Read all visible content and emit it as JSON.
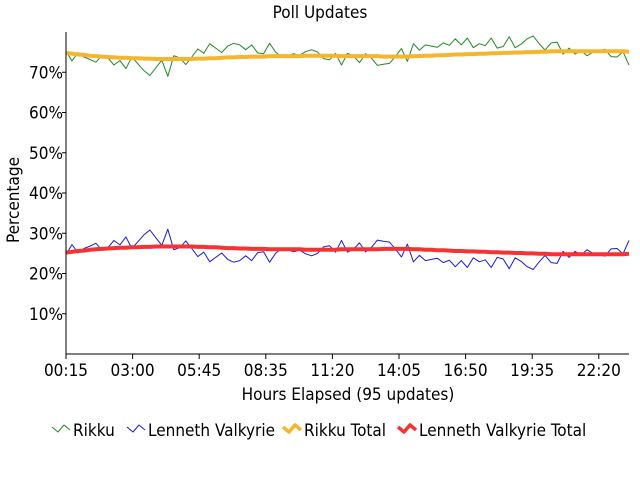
{
  "chart_data": {
    "type": "line",
    "title": "Poll Updates",
    "xlabel": "Hours Elapsed (95 updates)",
    "ylabel": "Percentage",
    "ylim": [
      0,
      80
    ],
    "grid": false,
    "legend_position": "bottom",
    "x_ticks": [
      "00:15",
      "03:00",
      "05:45",
      "08:35",
      "11:20",
      "14:05",
      "16:50",
      "19:35",
      "22:20"
    ],
    "y_ticks": [
      "10%",
      "20%",
      "30%",
      "40%",
      "50%",
      "60%",
      "70%"
    ],
    "y_tick_values": [
      10,
      20,
      30,
      40,
      50,
      60,
      70
    ],
    "n_updates": 95,
    "series": [
      {
        "name": "Rikku",
        "color": "#228b22",
        "values": [
          75.2,
          72.8,
          74.9,
          73.8,
          73.2,
          72.5,
          74.1,
          73.6,
          71.8,
          72.9,
          70.9,
          73.8,
          72.1,
          70.4,
          69.2,
          71.1,
          73.0,
          69.0,
          74.1,
          73.6,
          71.9,
          73.8,
          75.8,
          74.7,
          77.1,
          76.0,
          74.9,
          76.5,
          77.2,
          76.8,
          75.6,
          76.8,
          74.8,
          74.6,
          77.2,
          75.0,
          73.8,
          74.1,
          74.6,
          74.2,
          75.1,
          75.6,
          75.0,
          73.4,
          73.1,
          74.7,
          71.8,
          74.7,
          74.0,
          72.4,
          74.6,
          73.5,
          71.7,
          72.0,
          72.2,
          73.9,
          75.9,
          72.7,
          77.1,
          75.5,
          76.8,
          76.5,
          76.2,
          77.3,
          76.7,
          78.3,
          76.8,
          78.5,
          76.1,
          77.1,
          76.6,
          78.5,
          76.0,
          76.4,
          78.8,
          76.1,
          77.0,
          78.3,
          79.0,
          77.1,
          75.5,
          77.3,
          77.5,
          74.5,
          76.0,
          74.5,
          75.4,
          74.1,
          75.0,
          75.3,
          75.7,
          73.9,
          73.8,
          75.1,
          71.8
        ]
      },
      {
        "name": "Lenneth Valkyrie",
        "color": "#1c1cd6",
        "values": [
          24.7,
          27.2,
          25.1,
          26.2,
          26.8,
          27.5,
          25.9,
          26.4,
          28.2,
          27.1,
          29.1,
          26.2,
          27.9,
          29.6,
          30.8,
          28.9,
          27.0,
          31.0,
          25.9,
          26.4,
          28.1,
          26.2,
          24.2,
          25.3,
          22.9,
          24.0,
          25.1,
          23.5,
          22.8,
          23.2,
          24.4,
          23.2,
          25.2,
          25.4,
          22.8,
          25.0,
          26.2,
          25.9,
          25.4,
          25.8,
          24.9,
          24.4,
          25.0,
          26.6,
          26.9,
          25.3,
          28.2,
          25.3,
          26.0,
          27.6,
          25.4,
          26.5,
          28.3,
          28.0,
          27.8,
          26.1,
          24.1,
          27.3,
          22.9,
          24.5,
          23.2,
          23.5,
          23.8,
          22.7,
          23.3,
          21.7,
          23.2,
          21.5,
          23.9,
          22.9,
          23.4,
          21.5,
          24.0,
          23.6,
          21.2,
          23.9,
          23.0,
          21.7,
          21.0,
          22.9,
          24.5,
          22.7,
          22.5,
          25.5,
          24.0,
          25.5,
          24.6,
          25.9,
          25.0,
          24.7,
          24.3,
          26.1,
          26.2,
          24.9,
          28.2
        ]
      },
      {
        "name": "Rikku Total",
        "color": "#f5b52e",
        "values": [
          74.8,
          74.6,
          74.4,
          74.3,
          74.1,
          74.0,
          73.9,
          73.8,
          73.7,
          73.6,
          73.6,
          73.5,
          73.5,
          73.4,
          73.4,
          73.3,
          73.3,
          73.3,
          73.3,
          73.3,
          73.3,
          73.3,
          73.4,
          73.4,
          73.5,
          73.5,
          73.6,
          73.7,
          73.7,
          73.8,
          73.8,
          73.9,
          73.9,
          73.9,
          74.0,
          74.0,
          74.0,
          74.0,
          74.0,
          74.0,
          74.1,
          74.1,
          74.1,
          74.1,
          74.1,
          74.1,
          74.0,
          74.0,
          74.0,
          74.0,
          74.0,
          74.0,
          74.0,
          73.9,
          73.9,
          73.9,
          73.9,
          73.9,
          74.0,
          74.0,
          74.1,
          74.1,
          74.2,
          74.2,
          74.3,
          74.4,
          74.4,
          74.5,
          74.5,
          74.6,
          74.6,
          74.7,
          74.7,
          74.8,
          74.8,
          74.9,
          74.9,
          75.0,
          75.0,
          75.1,
          75.1,
          75.2,
          75.2,
          75.2,
          75.2,
          75.2,
          75.2,
          75.2,
          75.2,
          75.2,
          75.2,
          75.2,
          75.2,
          75.2,
          75.1
        ]
      },
      {
        "name": "Lenneth Valkyrie Total",
        "color": "#f53333",
        "values": [
          25.2,
          25.4,
          25.6,
          25.7,
          25.9,
          26.0,
          26.1,
          26.2,
          26.3,
          26.4,
          26.4,
          26.5,
          26.5,
          26.6,
          26.6,
          26.7,
          26.7,
          26.7,
          26.7,
          26.7,
          26.7,
          26.7,
          26.6,
          26.6,
          26.5,
          26.5,
          26.4,
          26.3,
          26.3,
          26.2,
          26.2,
          26.1,
          26.1,
          26.1,
          26.0,
          26.0,
          26.0,
          26.0,
          26.0,
          26.0,
          25.9,
          25.9,
          25.9,
          25.9,
          25.9,
          25.9,
          26.0,
          26.0,
          26.0,
          26.0,
          26.0,
          26.0,
          26.0,
          26.1,
          26.1,
          26.1,
          26.1,
          26.1,
          26.0,
          26.0,
          25.9,
          25.9,
          25.8,
          25.8,
          25.7,
          25.6,
          25.6,
          25.5,
          25.5,
          25.4,
          25.4,
          25.3,
          25.3,
          25.2,
          25.2,
          25.1,
          25.1,
          25.0,
          25.0,
          24.9,
          24.9,
          24.8,
          24.8,
          24.8,
          24.8,
          24.8,
          24.8,
          24.8,
          24.8,
          24.8,
          24.8,
          24.8,
          24.8,
          24.8,
          24.9
        ]
      }
    ]
  }
}
